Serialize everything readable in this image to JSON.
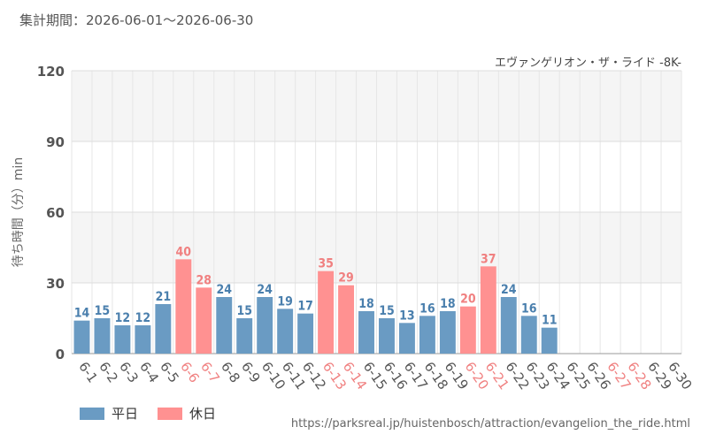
{
  "header": {
    "period": "集計期間：2026-06-01～2026-06-30",
    "attraction": "エヴァンゲリオン・ザ・ライド -8K-"
  },
  "legend": {
    "weekday_label": "平日",
    "holiday_label": "休日"
  },
  "footer": {
    "url": "https://parksreal.jp/huistenbosch/attraction/evangelion_the_ride.html"
  },
  "colors": {
    "weekday": "#6a9bc3",
    "holiday": "#ff9191",
    "weekday_label": "#4a7fad",
    "holiday_label": "#f08080",
    "axis_text": "#555555"
  },
  "chart_data": {
    "type": "bar",
    "title": "エヴァンゲリオン・ザ・ライド -8K-",
    "ylabel": "待ち時間（分）min",
    "xlabel": "",
    "ylim": [
      0,
      120
    ],
    "yticks": [
      0,
      30,
      60,
      90,
      120
    ],
    "grid": true,
    "legend_position": "bottom-left",
    "categories": [
      "6-1",
      "6-2",
      "6-3",
      "6-4",
      "6-5",
      "6-6",
      "6-7",
      "6-8",
      "6-9",
      "6-10",
      "6-11",
      "6-12",
      "6-13",
      "6-14",
      "6-15",
      "6-16",
      "6-17",
      "6-18",
      "6-19",
      "6-20",
      "6-21",
      "6-22",
      "6-23",
      "6-24",
      "6-25",
      "6-26",
      "6-27",
      "6-28",
      "6-29",
      "6-30"
    ],
    "values": [
      14,
      15,
      12,
      12,
      21,
      40,
      28,
      24,
      15,
      24,
      19,
      17,
      35,
      29,
      18,
      15,
      13,
      16,
      18,
      20,
      37,
      24,
      16,
      11,
      null,
      null,
      null,
      null,
      null,
      null
    ],
    "holiday": [
      false,
      false,
      false,
      false,
      false,
      true,
      true,
      false,
      false,
      false,
      false,
      false,
      true,
      true,
      false,
      false,
      false,
      false,
      false,
      true,
      true,
      false,
      false,
      false,
      false,
      false,
      true,
      true,
      false,
      false
    ],
    "series": [
      {
        "name": "平日"
      },
      {
        "name": "休日"
      }
    ]
  }
}
